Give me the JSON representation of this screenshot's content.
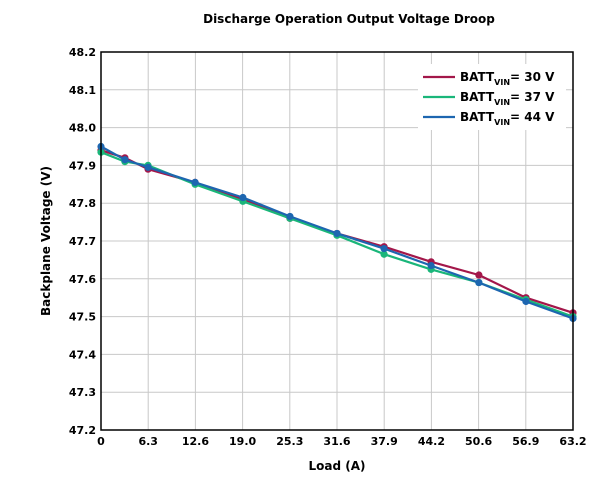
{
  "chart_data": {
    "type": "line",
    "title": "Discharge Operation Output Voltage Droop",
    "xlabel": "Load (A)",
    "ylabel": "Backplane Voltage (V)",
    "x_ticks": [
      "0",
      "6.3",
      "12.6",
      "19.0",
      "25.3",
      "31.6",
      "37.9",
      "44.2",
      "50.6",
      "56.9",
      "63.2"
    ],
    "y_ticks": [
      "47.2",
      "47.3",
      "47.4",
      "47.5",
      "47.6",
      "47.7",
      "47.8",
      "47.9",
      "48.0",
      "48.1",
      "48.2"
    ],
    "y_tick_values": [
      47.2,
      47.3,
      47.4,
      47.5,
      47.6,
      47.7,
      47.8,
      47.9,
      48.0,
      48.1,
      48.2
    ],
    "xlim": [
      0,
      63.2
    ],
    "ylim": [
      47.2,
      48.2
    ],
    "grid": true,
    "legend_position": "top-right",
    "series": [
      {
        "name_main": "BATT",
        "name_sub": "VIN",
        "name_suffix": "= 30 V",
        "color": "#a3174a",
        "x": [
          0,
          3.2,
          6.3,
          12.6,
          19.0,
          25.3,
          31.6,
          37.9,
          44.2,
          50.6,
          56.9,
          63.2
        ],
        "values": [
          47.94,
          47.92,
          47.89,
          47.855,
          47.81,
          47.76,
          47.72,
          47.685,
          47.645,
          47.61,
          47.55,
          47.51
        ]
      },
      {
        "name_main": "BATT",
        "name_sub": "VIN",
        "name_suffix": "= 37 V",
        "color": "#1ab67a",
        "x": [
          0,
          3.2,
          6.3,
          12.6,
          19.0,
          25.3,
          31.6,
          37.9,
          44.2,
          50.6,
          56.9,
          63.2
        ],
        "values": [
          47.935,
          47.91,
          47.9,
          47.85,
          47.805,
          47.76,
          47.715,
          47.665,
          47.625,
          47.59,
          47.545,
          47.5
        ]
      },
      {
        "name_main": "BATT",
        "name_sub": "VIN",
        "name_suffix": "= 44 V",
        "color": "#1d66b0",
        "x": [
          0,
          3.2,
          6.3,
          12.6,
          19.0,
          25.3,
          31.6,
          37.9,
          44.2,
          50.6,
          56.9,
          63.2
        ],
        "values": [
          47.95,
          47.915,
          47.895,
          47.855,
          47.815,
          47.765,
          47.72,
          47.68,
          47.635,
          47.59,
          47.54,
          47.495
        ]
      }
    ]
  }
}
